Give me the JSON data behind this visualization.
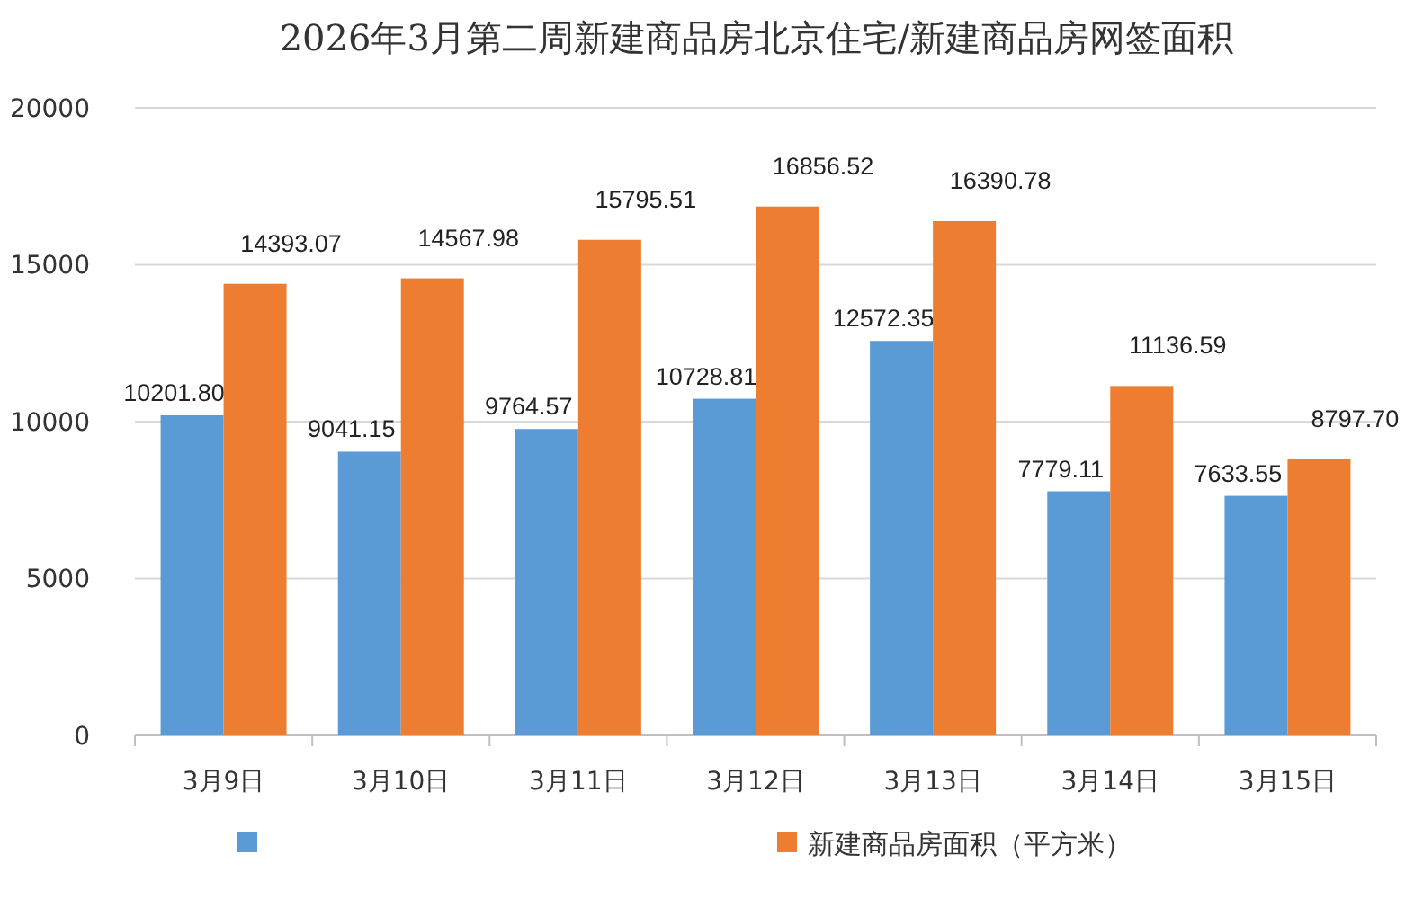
{
  "chart_data": {
    "type": "bar",
    "title": "2026年3月第二周新建商品房北京住宅/新建商品房网签面积",
    "categories": [
      "3月9日",
      "3月10日",
      "3月11日",
      "3月12日",
      "3月13日",
      "3月14日",
      "3月15日"
    ],
    "series": [
      {
        "color": "#5b9bd5",
        "values": [
          10201.8,
          9041.15,
          9764.57,
          10728.81,
          12572.35,
          7779.11,
          7633.55
        ],
        "value_labels": [
          "10201.80",
          "9041.15",
          "9764.57",
          "10728.81",
          "12572.35",
          "7779.11",
          "7633.55"
        ]
      },
      {
        "name": "新建商品房面积（平方米）",
        "color": "#ed7d31",
        "values": [
          14393.07,
          14567.98,
          15795.51,
          16856.52,
          16390.78,
          11136.59,
          8797.7
        ],
        "value_labels": [
          "14393.07",
          "14567.98",
          "15795.51",
          "16856.52",
          "16390.78",
          "11136.59",
          "8797.70"
        ]
      }
    ],
    "ylim": [
      0,
      20000
    ],
    "yticks": [
      0,
      5000,
      10000,
      15000,
      20000
    ],
    "grid": "y",
    "legend": "bottom"
  }
}
